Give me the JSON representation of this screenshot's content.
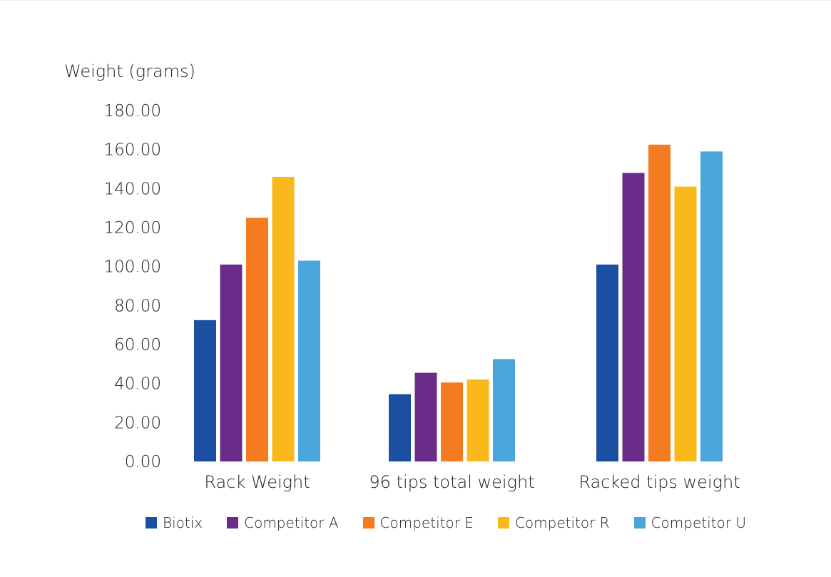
{
  "chart_data": {
    "type": "bar",
    "title": "",
    "ylabel": "Weight (grams)",
    "xlabel": "",
    "categories": [
      "Rack Weight",
      "96 tips total weight",
      "Racked tips weight"
    ],
    "ylim": [
      0,
      180
    ],
    "yticks": [
      "0.00",
      "20.00",
      "40.00",
      "60.00",
      "80.00",
      "100.00",
      "120.00",
      "140.00",
      "160.00",
      "180.00"
    ],
    "grid": false,
    "legend_position": "bottom",
    "series": [
      {
        "name": "Biotix",
        "color": "#1c4ea1",
        "values": [
          72.5,
          34.5,
          101.0
        ]
      },
      {
        "name": "Competitor A",
        "color": "#6a2c89",
        "values": [
          101.0,
          45.5,
          148.0
        ]
      },
      {
        "name": "Competitor E",
        "color": "#f47b20",
        "values": [
          125.0,
          40.5,
          162.5
        ]
      },
      {
        "name": "Competitor R",
        "color": "#fbb81a",
        "values": [
          146.0,
          42.0,
          141.0
        ]
      },
      {
        "name": "Competitor U",
        "color": "#4aa5dc",
        "values": [
          103.0,
          52.5,
          159.0
        ]
      }
    ]
  }
}
